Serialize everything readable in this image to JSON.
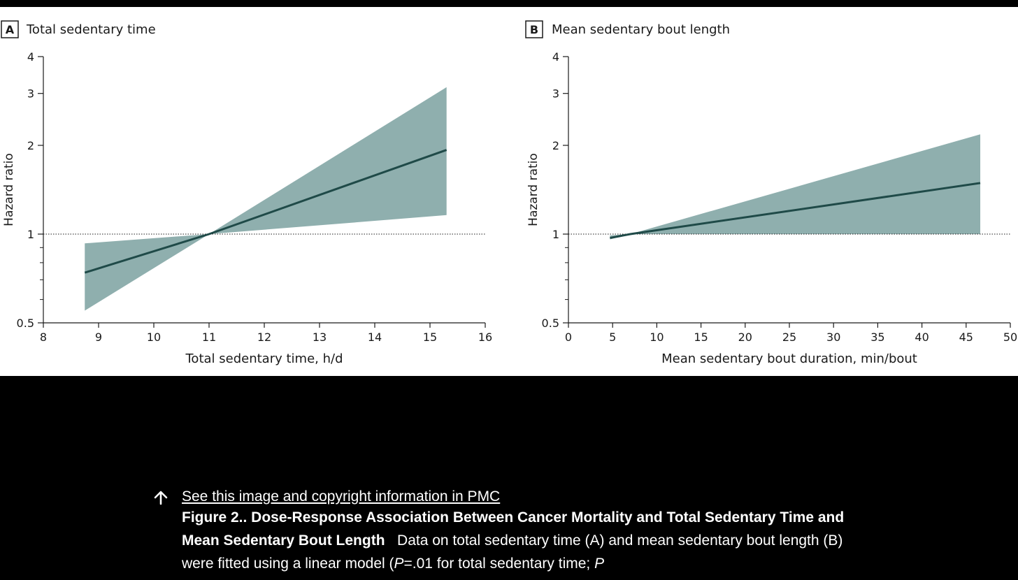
{
  "colors": {
    "band": "#8fafae",
    "line": "#1f4a48",
    "panel_bg": "#ffffff",
    "page_bg": "#000000"
  },
  "chart_data": [
    {
      "type": "line",
      "panel_letter": "A",
      "title": "Total sedentary time",
      "xlabel": "Total sedentary time, h/d",
      "ylabel": "Hazard ratio",
      "xlim": [
        8,
        16
      ],
      "xticks": [
        8,
        9,
        10,
        11,
        12,
        13,
        14,
        15,
        16
      ],
      "ylim": [
        0.5,
        4
      ],
      "yscale": "log",
      "yticks": [
        0.5,
        1,
        2,
        3,
        4
      ],
      "yticks_minor": [
        0.6,
        0.7,
        0.8,
        0.9
      ],
      "reference_line": 1,
      "series": [
        {
          "name": "Hazard ratio",
          "x": [
            8.75,
            11.0,
            15.3
          ],
          "y": [
            0.74,
            1.0,
            1.93
          ],
          "ci_lower": [
            0.55,
            1.0,
            1.16
          ],
          "ci_upper": [
            0.93,
            1.0,
            3.15
          ]
        }
      ]
    },
    {
      "type": "line",
      "panel_letter": "B",
      "title": "Mean sedentary bout length",
      "xlabel": "Mean sedentary bout duration, min/bout",
      "ylabel": "Hazard ratio",
      "xlim": [
        0,
        50
      ],
      "xticks": [
        0,
        5,
        10,
        15,
        20,
        25,
        30,
        35,
        40,
        45,
        50
      ],
      "ylim": [
        0.5,
        4
      ],
      "yscale": "log",
      "yticks": [
        0.5,
        1,
        2,
        3,
        4
      ],
      "yticks_minor": [
        0.6,
        0.7,
        0.8,
        0.9
      ],
      "reference_line": 1,
      "series": [
        {
          "name": "Hazard ratio",
          "x": [
            4.7,
            7.0,
            46.6
          ],
          "y": [
            0.97,
            1.0,
            1.49
          ],
          "ci_lower": [
            0.96,
            1.0,
            1.0
          ],
          "ci_upper": [
            0.99,
            1.0,
            2.18
          ]
        }
      ]
    }
  ],
  "caption": {
    "link_text": "See this image and copyright information in PMC",
    "figure_title": "Figure 2.. Dose-Response Association Between Cancer Mortality and Total Sedentary Time and Mean Sedentary Bout Length",
    "body_part1": "Data on total sedentary time (A) and mean sedentary bout length (B) were fitted using a linear model (",
    "p_letter": "P",
    "body_part2": "=.01 for total sedentary time; ",
    "p_letter_2": "P"
  }
}
